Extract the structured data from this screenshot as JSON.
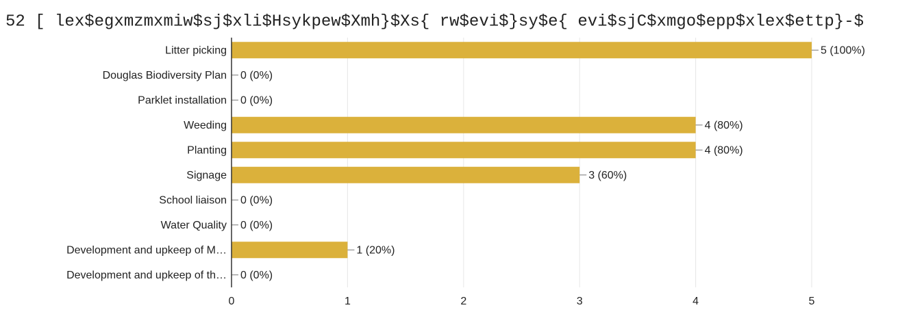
{
  "chart_data": {
    "type": "bar",
    "orientation": "horizontal",
    "title": "52 [ lex$egxmzmxmiw$sj$xli$Hsykpew$Xmh}$Xs{ rw$evi$}sy$e{ evi$sjC$xmgo$epp$xlex$ettp}-$",
    "categories": [
      "Litter picking",
      "Douglas Biodiversity Plan",
      "Parklet installation",
      "Weeding",
      "Planting",
      "Signage",
      "School liaison",
      "Water Quality",
      "Development and upkeep of M…",
      "Development and upkeep of th…"
    ],
    "values": [
      5,
      0,
      0,
      4,
      4,
      3,
      0,
      0,
      1,
      0
    ],
    "value_labels": [
      "5 (100%)",
      "0 (0%)",
      "0 (0%)",
      "4 (80%)",
      "4 (80%)",
      "3 (60%)",
      "0 (0%)",
      "0 (0%)",
      "1 (20%)",
      "0 (0%)"
    ],
    "color": "#dbb13b",
    "xlim": [
      0,
      5
    ],
    "xticks": [
      0,
      1,
      2,
      3,
      4,
      5
    ],
    "grid": true
  }
}
